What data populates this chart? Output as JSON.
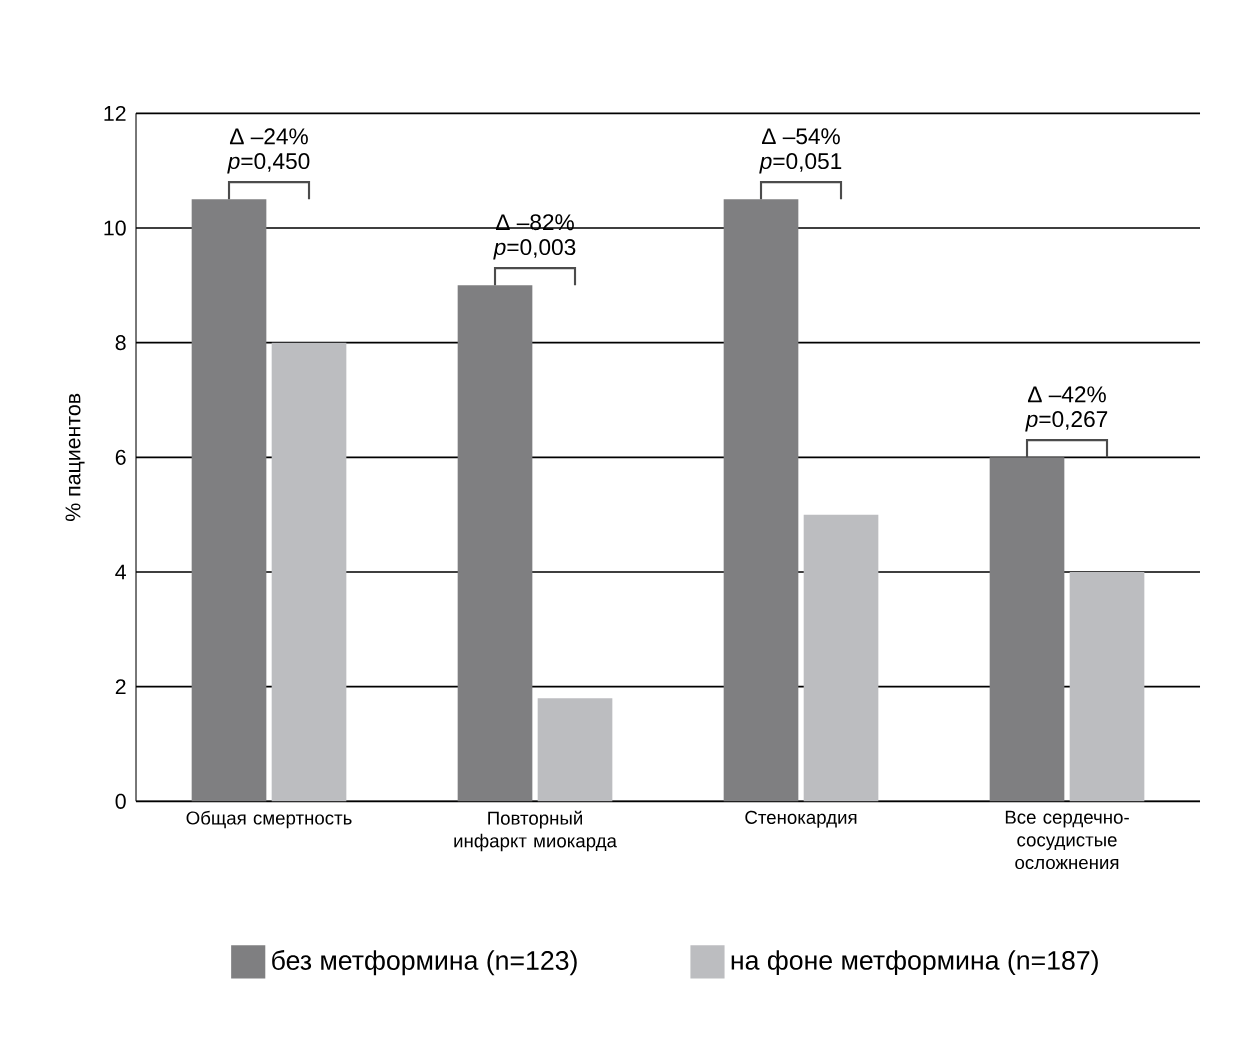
{
  "chart_data": {
    "type": "bar",
    "ylabel": "% пациентов",
    "categories": [
      "Общая смертность",
      "Повторный инфаркт миокарда",
      "Стенокардия",
      "Все сердечно-сосудистые осложнения"
    ],
    "series": [
      {
        "name": "без метформина (n=123)",
        "color": "#7f7f81",
        "values": [
          10.5,
          9,
          10.5,
          6
        ]
      },
      {
        "name": "на фоне метформина (n=187)",
        "color": "#bcbdc0",
        "values": [
          8,
          1.8,
          5,
          4
        ]
      }
    ],
    "ylim": [
      0,
      12
    ],
    "yticks": [
      0,
      2,
      4,
      6,
      8,
      10,
      12
    ],
    "grid": "y",
    "legend": "bottom",
    "annotations": [
      {
        "text": "Δ –24%",
        "x": "Общая смертность",
        "y": 10.5
      },
      {
        "text": "*p*=0,450",
        "x": "Общая смертность",
        "y": 10.5
      },
      {
        "text": "Δ –82%",
        "x": "Повторный инфаркт миокарда",
        "y": 9
      },
      {
        "text": "*p*=0,003",
        "x": "Повторный инфаркт миокарда",
        "y": 9
      },
      {
        "text": "Δ –54%",
        "x": "Стенокардия",
        "y": 10.5
      },
      {
        "text": "*p*=0,051",
        "x": "Стенокардия",
        "y": 10.5
      },
      {
        "text": "Δ –42%",
        "x": "Все сердечно-сосудистые осложнения",
        "y": 6
      },
      {
        "text": "*p*=0,267",
        "x": "Все сердечно-сосудистые осложнения",
        "y": 6
      }
    ]
  }
}
